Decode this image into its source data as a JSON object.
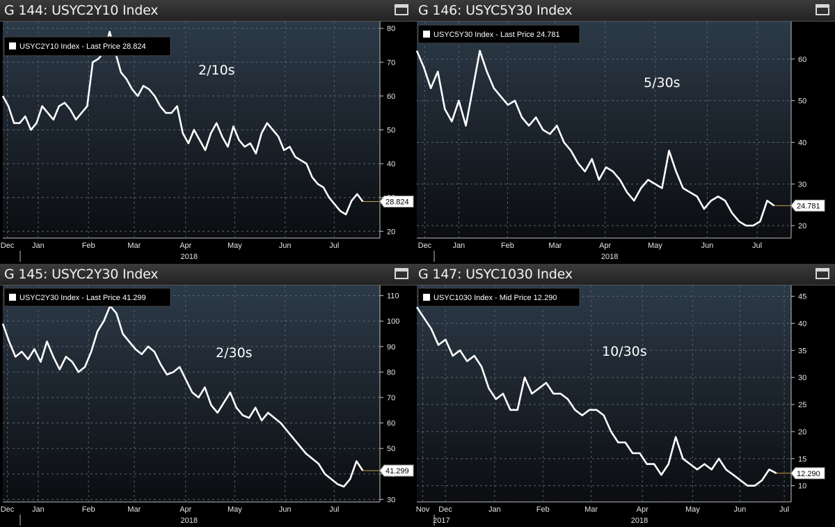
{
  "colors": {
    "background": "#000000",
    "line": "#ffffff",
    "plot_top": "#2c3a48",
    "plot_bottom": "#0b0d10"
  },
  "panels": [
    {
      "title": "G 144: USYC2Y10 Index",
      "icon": "maximize-icon"
    },
    {
      "title": "G 146: USYC5Y30 Index",
      "icon": "maximize-icon"
    },
    {
      "title": "G 145: USYC2Y30 Index",
      "icon": "maximize-icon"
    },
    {
      "title": "G 147: USYC1030 Index",
      "icon": "maximize-icon"
    }
  ],
  "chart_data": [
    {
      "type": "line",
      "legend": "USYC2Y10 Index - Last Price 28.824",
      "annotation": "2/10s",
      "last_value_label": "28.824",
      "ylim": [
        18,
        82
      ],
      "yticks": [
        20,
        30,
        40,
        50,
        60,
        70,
        80
      ],
      "xlim": [
        0,
        33
      ],
      "xticks": [
        {
          "x": 0.4,
          "label": "Dec"
        },
        {
          "x": 3.1,
          "label": "Jan"
        },
        {
          "x": 7.5,
          "label": "Feb"
        },
        {
          "x": 11.5,
          "label": "Mar"
        },
        {
          "x": 16,
          "label": "Apr"
        },
        {
          "x": 20.3,
          "label": "May"
        },
        {
          "x": 24.7,
          "label": "Jun"
        },
        {
          "x": 29,
          "label": "Jul"
        }
      ],
      "year_label": {
        "x": 16.3,
        "label": "2018"
      },
      "grid": true,
      "series": [
        {
          "values": [
            60,
            57,
            52,
            52,
            54,
            50,
            52,
            57,
            55,
            53,
            57,
            58,
            56,
            53,
            55,
            57,
            70,
            71,
            73,
            79,
            73,
            67,
            65,
            62,
            60,
            63,
            62,
            60,
            57,
            55,
            55,
            57,
            49,
            46,
            50,
            47,
            44,
            49,
            52,
            48,
            45,
            51,
            47,
            45,
            46,
            43,
            49,
            52,
            50,
            48,
            44,
            45,
            42,
            41,
            40,
            36,
            34,
            33,
            30,
            28,
            26,
            25,
            29,
            31,
            28.8
          ]
        }
      ]
    },
    {
      "type": "line",
      "legend": "USYC5Y30 Index - Last Price 24.781",
      "annotation": "5/30s",
      "last_value_label": "24.781",
      "ylim": [
        17,
        69
      ],
      "yticks": [
        20,
        30,
        40,
        50,
        60
      ],
      "xlim": [
        0,
        33
      ],
      "xticks": [
        {
          "x": 0.7,
          "label": "Dec"
        },
        {
          "x": 3.7,
          "label": "Jan"
        },
        {
          "x": 8,
          "label": "Feb"
        },
        {
          "x": 12.2,
          "label": "Mar"
        },
        {
          "x": 16.6,
          "label": "Apr"
        },
        {
          "x": 21,
          "label": "May"
        },
        {
          "x": 25.6,
          "label": "Jun"
        },
        {
          "x": 30,
          "label": "Jul"
        }
      ],
      "year_label": {
        "x": 17,
        "label": "2018"
      },
      "grid": true,
      "series": [
        {
          "values": [
            62,
            58,
            53,
            57,
            48,
            45,
            50,
            44,
            53,
            62,
            57,
            53,
            51,
            49,
            50,
            46,
            44,
            46,
            43,
            42,
            44,
            40,
            38,
            35,
            33,
            36,
            31,
            34,
            33,
            31,
            28,
            26,
            29,
            31,
            30,
            29,
            38,
            33,
            29,
            28,
            27,
            24,
            26,
            27,
            26,
            23,
            21,
            20,
            20,
            21,
            26,
            24.8
          ]
        }
      ]
    },
    {
      "type": "line",
      "legend": "USYC2Y30 Index - Last Price 41.299",
      "annotation": "2/30s",
      "last_value_label": "41.299",
      "ylim": [
        29,
        114
      ],
      "yticks": [
        30,
        40,
        50,
        60,
        70,
        80,
        90,
        100,
        110
      ],
      "xlim": [
        0,
        33
      ],
      "xticks": [
        {
          "x": 0.4,
          "label": "Dec"
        },
        {
          "x": 3.1,
          "label": "Jan"
        },
        {
          "x": 7.5,
          "label": "Feb"
        },
        {
          "x": 11.5,
          "label": "Mar"
        },
        {
          "x": 16,
          "label": "Apr"
        },
        {
          "x": 20.3,
          "label": "May"
        },
        {
          "x": 24.7,
          "label": "Jun"
        },
        {
          "x": 29,
          "label": "Jul"
        }
      ],
      "year_label": {
        "x": 16.3,
        "label": "2018"
      },
      "grid": true,
      "series": [
        {
          "values": [
            99,
            92,
            86,
            88,
            85,
            89,
            84,
            92,
            86,
            81,
            86,
            84,
            80,
            82,
            88,
            96,
            100,
            106,
            103,
            95,
            92,
            89,
            87,
            90,
            88,
            83,
            79,
            80,
            82,
            77,
            72,
            70,
            74,
            67,
            64,
            68,
            72,
            66,
            63,
            62,
            66,
            61,
            64,
            62,
            60,
            57,
            54,
            51,
            48,
            46,
            44,
            40,
            38,
            36,
            35,
            38,
            45,
            41.3
          ]
        }
      ]
    },
    {
      "type": "line",
      "legend": "USYC1030 Index - Mid Price 12.290",
      "annotation": "10/30s",
      "last_value_label": "12.290",
      "ylim": [
        7,
        47
      ],
      "yticks": [
        10,
        15,
        20,
        25,
        30,
        35,
        40,
        45
      ],
      "xlim": [
        0,
        38
      ],
      "xticks": [
        {
          "x": 0.6,
          "label": "Nov"
        },
        {
          "x": 2.9,
          "label": "Dec"
        },
        {
          "x": 7.9,
          "label": "Jan"
        },
        {
          "x": 12.8,
          "label": "Feb"
        },
        {
          "x": 17.7,
          "label": "Mar"
        },
        {
          "x": 22.9,
          "label": "Apr"
        },
        {
          "x": 28,
          "label": "May"
        },
        {
          "x": 32.8,
          "label": "Jun"
        },
        {
          "x": 37.3,
          "label": "Jul"
        }
      ],
      "year_labels": [
        {
          "x": 2.5,
          "label": "2017"
        },
        {
          "x": 22.6,
          "label": "2018"
        }
      ],
      "grid": true,
      "series": [
        {
          "values": [
            43,
            41,
            39,
            36,
            37,
            34,
            35,
            33,
            34,
            32,
            28,
            26,
            27,
            24,
            24,
            30,
            27,
            28,
            29,
            27,
            27,
            26,
            24,
            23,
            24,
            24,
            23,
            20,
            18,
            18,
            16,
            16,
            14,
            14,
            12,
            14,
            19,
            15,
            14,
            13,
            14,
            13,
            15,
            13,
            12,
            11,
            10,
            10,
            11,
            13,
            12.3
          ]
        }
      ]
    }
  ]
}
